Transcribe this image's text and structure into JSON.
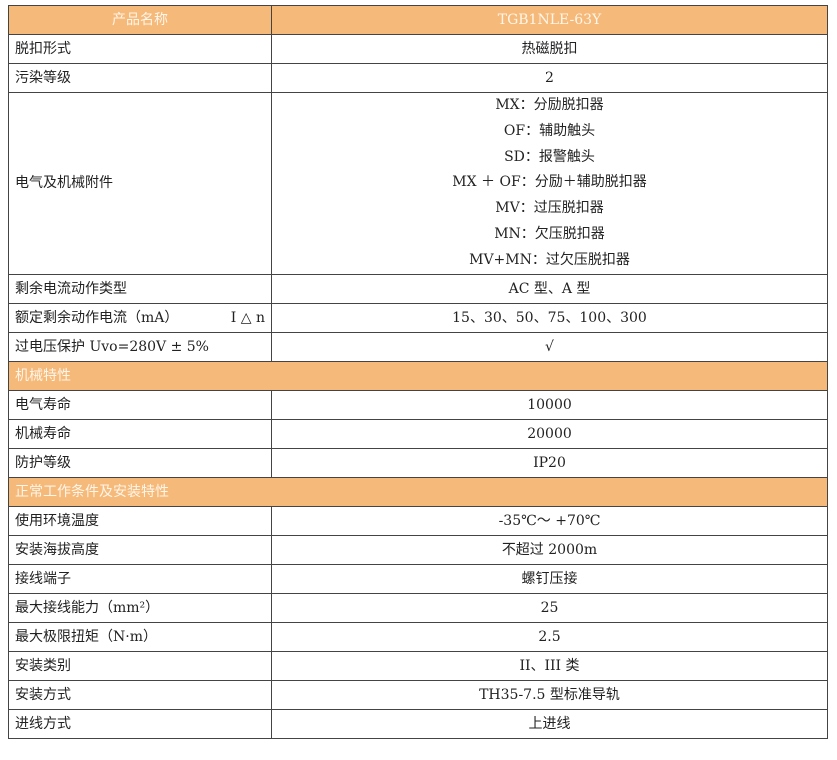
{
  "header": {
    "label": "产品名称",
    "value": "TGB1NLE-63Y"
  },
  "rows_a": [
    {
      "label": "脱扣形式",
      "value": "热磁脱扣"
    },
    {
      "label": "污染等级",
      "value": "2"
    }
  ],
  "accessories": {
    "label": "电气及机械附件",
    "values": [
      "MX：分励脱扣器",
      "OF：辅助触头",
      "SD：报警触头",
      "MX ＋ OF：分励＋辅助脱扣器",
      "MV：过压脱扣器",
      "MN：欠压脱扣器",
      "MV+MN：过欠压脱扣器"
    ]
  },
  "rows_b": [
    {
      "label": "剩余电流动作类型",
      "value": "AC 型、A 型"
    },
    {
      "label": "额定剩余动作电流（mA）",
      "symbol": "I △ n",
      "value": "15、30、50、75、100、300"
    },
    {
      "label": "过电压保护 Uvo=280V ± 5%",
      "value": "√"
    }
  ],
  "section_mech": {
    "title": "机械特性",
    "rows": [
      {
        "label": "电气寿命",
        "value": "10000"
      },
      {
        "label": "机械寿命",
        "value": "20000"
      },
      {
        "label": "防护等级",
        "value": "IP20"
      }
    ]
  },
  "section_cond": {
    "title": "正常工作条件及安装特性",
    "rows": [
      {
        "label": "使用环境温度",
        "value": "-35℃～ +70℃"
      },
      {
        "label": "安装海拔高度",
        "value": "不超过 2000m"
      },
      {
        "label": "接线端子",
        "value": "螺钉压接"
      },
      {
        "label": "最大接线能力（mm²）",
        "value": "25"
      },
      {
        "label": "最大极限扭矩（N·m）",
        "value": "2.5"
      },
      {
        "label": "安装类别",
        "value": "II、III 类"
      },
      {
        "label": "安装方式",
        "value": "TH35-7.5 型标准导轨"
      },
      {
        "label": "进线方式",
        "value": "上进线"
      }
    ]
  },
  "colors": {
    "header_bg": "#f5b97a",
    "header_text": "#fff5e8",
    "border": "#444444"
  }
}
